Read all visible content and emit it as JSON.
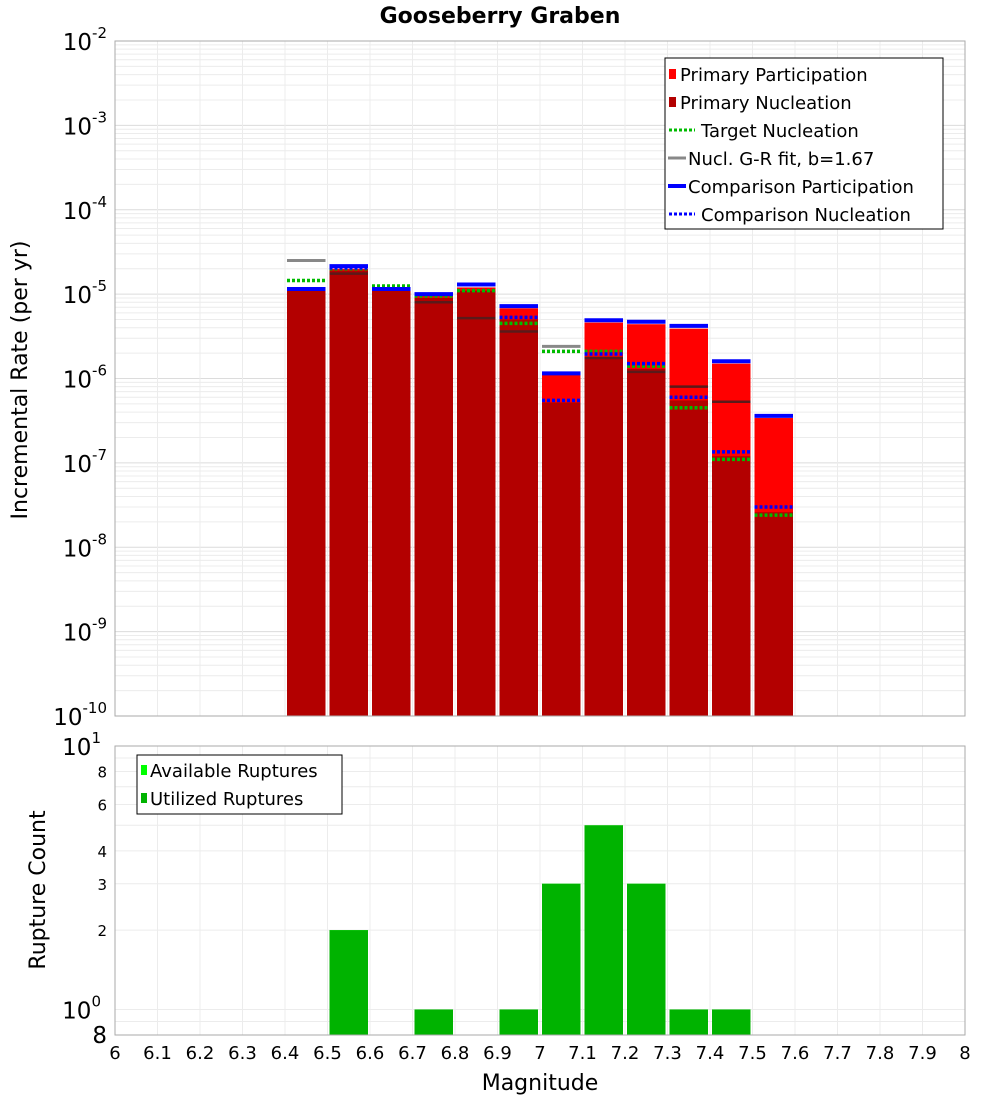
{
  "chart_data": [
    {
      "type": "bar",
      "title": "Gooseberry Graben",
      "xlabel": "",
      "ylabel": "Incremental Rate (per yr)",
      "xlim": [
        6.0,
        8.0
      ],
      "ylim": [
        1e-10,
        0.01
      ],
      "yscale": "log",
      "grid": true,
      "legend_position": "top-right",
      "y_tick_decades": [
        {
          "base": "10",
          "exp": "-2",
          "value": 0.01
        },
        {
          "base": "10",
          "exp": "-3",
          "value": 0.001
        },
        {
          "base": "10",
          "exp": "-4",
          "value": 0.0001
        },
        {
          "base": "10",
          "exp": "-5",
          "value": 1e-05
        },
        {
          "base": "10",
          "exp": "-6",
          "value": 1e-06
        },
        {
          "base": "10",
          "exp": "-7",
          "value": 1e-07
        },
        {
          "base": "10",
          "exp": "-8",
          "value": 1e-08
        },
        {
          "base": "10",
          "exp": "-9",
          "value": 1e-09
        },
        {
          "base": "10",
          "exp": "-10",
          "value": 1e-10
        }
      ],
      "x": [
        6.45,
        6.55,
        6.65,
        6.75,
        6.85,
        6.95,
        7.05,
        7.15,
        7.25,
        7.35,
        7.45,
        7.55
      ],
      "series": [
        {
          "name": "Primary Participation",
          "color": "#ff0000",
          "style": "bar",
          "values": [
            1.1e-05,
            2e-05,
            1.1e-05,
            9.5e-06,
            1.2e-05,
            6.8e-06,
            1.1e-06,
            4.6e-06,
            4.4e-06,
            3.9e-06,
            1.5e-06,
            3.4e-07
          ]
        },
        {
          "name": "Primary Nucleation",
          "color": "#b30000",
          "style": "bar",
          "values": [
            1.1e-05,
            1.9e-05,
            1.1e-05,
            9e-06,
            1.1e-05,
            5e-06,
            5.2e-07,
            1.8e-06,
            1.3e-06,
            5.5e-07,
            1.2e-07,
            2.6e-08
          ]
        },
        {
          "name": "Target Nucleation",
          "color": "#00bb00",
          "style": "dotted",
          "values": [
            1.45e-05,
            2e-05,
            1.25e-05,
            9.5e-06,
            1.1e-05,
            4.5e-06,
            2.1e-06,
            2.1e-06,
            1.4e-06,
            4.5e-07,
            1.1e-07,
            2.4e-08
          ]
        },
        {
          "name": "Nucl. G-R fit, b=1.67",
          "color": "#888888",
          "style": "solid",
          "values": [
            2.5e-05,
            null,
            null,
            null,
            null,
            null,
            2.4e-06,
            null,
            null,
            null,
            null,
            null
          ]
        },
        {
          "name": "Comparison Participation",
          "color": "#0000ff",
          "style": "solid",
          "values": [
            1.15e-05,
            2.15e-05,
            1.15e-05,
            1e-05,
            1.3e-05,
            7.2e-06,
            1.15e-06,
            4.9e-06,
            4.7e-06,
            4.2e-06,
            1.6e-06,
            3.6e-07
          ]
        },
        {
          "name": "Comparison Nucleation",
          "color": "#0000ff",
          "style": "dotted",
          "values": [
            null,
            2.05e-05,
            null,
            null,
            null,
            5.3e-06,
            5.5e-07,
            1.95e-06,
            1.5e-06,
            6e-07,
            1.35e-07,
            3e-08
          ]
        },
        {
          "name": "",
          "color": "#5a1a1a",
          "style": "solid",
          "values": [
            null,
            1.75e-05,
            null,
            8e-06,
            5.2e-06,
            3.6e-06,
            null,
            1.75e-06,
            1.2e-06,
            8e-07,
            5.3e-07,
            null
          ]
        }
      ]
    },
    {
      "type": "bar",
      "title": "",
      "xlabel": "Magnitude",
      "ylabel": "Rupture Count",
      "xlim": [
        6.0,
        8.0
      ],
      "ylim": [
        0.8,
        10
      ],
      "yscale": "log",
      "grid": true,
      "legend_position": "top-left",
      "x_ticks": [
        "6",
        "6.1",
        "6.2",
        "6.3",
        "6.4",
        "6.5",
        "6.6",
        "6.7",
        "6.8",
        "6.9",
        "7",
        "7.1",
        "7.2",
        "7.3",
        "7.4",
        "7.5",
        "7.6",
        "7.7",
        "7.8",
        "7.9",
        "8"
      ],
      "y_tick_decades": [
        {
          "base": "10",
          "exp": "1",
          "value": 10
        },
        {
          "base": "10",
          "exp": "0",
          "value": 1
        }
      ],
      "y_minor_ticks": [
        {
          "label": "8",
          "value": 8
        },
        {
          "label": "6",
          "value": 6
        },
        {
          "label": "4",
          "value": 4
        },
        {
          "label": "3",
          "value": 3
        },
        {
          "label": "2",
          "value": 2
        },
        {
          "label": "8",
          "value": 0.8
        }
      ],
      "x": [
        6.45,
        6.55,
        6.65,
        6.75,
        6.85,
        6.95,
        7.05,
        7.15,
        7.25,
        7.35,
        7.45,
        7.55
      ],
      "series": [
        {
          "name": "Available Ruptures",
          "color": "#00ff00",
          "values": [
            0,
            2,
            0,
            1,
            0,
            1,
            3,
            5,
            3,
            1,
            1,
            0
          ]
        },
        {
          "name": "Utilized Ruptures",
          "color": "#00b300",
          "values": [
            0,
            2,
            0,
            1,
            0,
            1,
            3,
            5,
            3,
            1,
            1,
            0
          ]
        }
      ]
    }
  ]
}
